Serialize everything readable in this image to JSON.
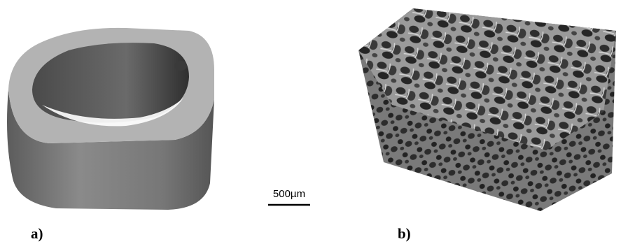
{
  "figure": {
    "scale_bar": "500µm",
    "panels": [
      {
        "label": "a)"
      },
      {
        "label": "b)"
      }
    ]
  }
}
